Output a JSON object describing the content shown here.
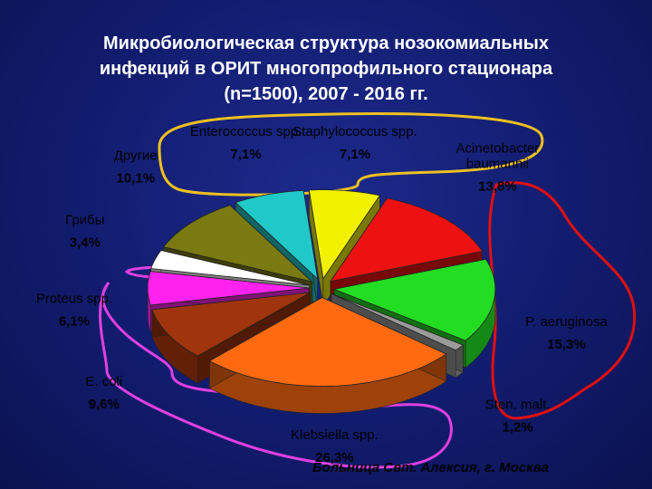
{
  "title": {
    "line1": "Микробиологическая структура нозокомиальных",
    "line2": "инфекций в ОРИТ многопрофильного стационара",
    "line3": "(n=1500), 2007 - 2016 гг."
  },
  "footnote": "Больница Свт. Алексия, г. Москва",
  "chart_data": {
    "type": "pie",
    "title": "Микробиологическая структура нозокомиальных инфекций в ОРИТ многопрофильного стационара (n=1500), 2007 - 2016 гг.",
    "unit": "%",
    "slices": [
      {
        "name": "Staphylococcus spp.",
        "value": 7.1,
        "value_label": "7,1%",
        "color": "#f2f200"
      },
      {
        "name": "Acinetobacter baumannii",
        "value": 13.8,
        "value_label": "13,8%",
        "color": "#ee1111"
      },
      {
        "name": "P. aeruginosa",
        "value": 15.3,
        "value_label": "15,3%",
        "color": "#22dd22"
      },
      {
        "name": "Sten. malt.",
        "value": 1.2,
        "value_label": "1,2%",
        "color": "#9a9a9a"
      },
      {
        "name": "Klebsiella spp.",
        "value": 26.3,
        "value_label": "26,3%",
        "color": "#ff6a10"
      },
      {
        "name": "E. coli",
        "value": 9.6,
        "value_label": "9,6%",
        "color": "#a0340c"
      },
      {
        "name": "Proteus spp.",
        "value": 6.1,
        "value_label": "6,1%",
        "color": "#ff22ee"
      },
      {
        "name": "Грибы",
        "value": 3.4,
        "value_label": "3,4%",
        "color": "#ffffff"
      },
      {
        "name": "Другие",
        "value": 10.1,
        "value_label": "10,1%",
        "color": "#7a7a10"
      },
      {
        "name": "Enterococcus spp.",
        "value": 7.1,
        "value_label": "7,1%",
        "color": "#20c8c8"
      }
    ],
    "groupings": [
      {
        "members": [
          "Staphylococcus spp.",
          "Enterococcus spp."
        ],
        "outline_color": "#f0c020"
      },
      {
        "members": [
          "Acinetobacter baumannii",
          "P. aeruginosa",
          "Sten. malt."
        ],
        "outline_color": "#e01010"
      },
      {
        "members": [
          "Klebsiella spp.",
          "E. coli",
          "Proteus spp."
        ],
        "outline_color": "#e040e0"
      }
    ]
  }
}
